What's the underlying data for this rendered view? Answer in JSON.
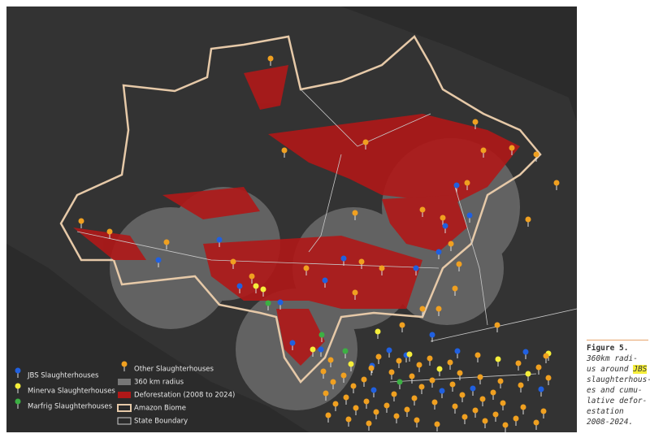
{
  "legend": {
    "jbs": "JBS Slaughterhouses",
    "minerva": "Minerva Slaughterhouses",
    "marfrig": "Marfrig Slaughterhouses",
    "other": "Other Slaughterhouses",
    "radius": "360 km radius",
    "deforestation": "Deforestation (2008 to 2024)",
    "biome": "Amazon Biome",
    "state": "State Boundary"
  },
  "caption": {
    "label": "Figure 5.",
    "lines": [
      "360km radi-",
      {
        "text": "us around",
        "highlight": "JBS"
      },
      "slaughterhous-",
      "es and cumu-",
      "lative defor-",
      "estation",
      "2008-2024."
    ]
  }
}
